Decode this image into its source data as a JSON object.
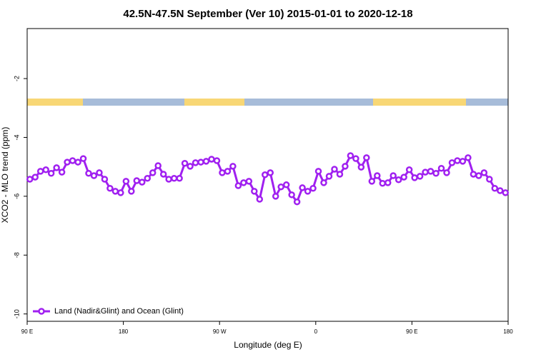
{
  "chart_data": {
    "type": "line",
    "title": "42.5N-47.5N September (Ver 10)   2015-01-01 to 2020-12-18",
    "x_label": "Longitude (deg E)",
    "y_label": "XCO2 - MLO trend (ppm)",
    "xlim": [
      90,
      540
    ],
    "ylim": [
      -10.25,
      -0.3
    ],
    "xticks": [
      {
        "value": 90,
        "label": "90 E"
      },
      180,
      {
        "value": 270,
        "label": "90 W"
      },
      {
        "value": 360,
        "label": "0"
      },
      {
        "value": 450,
        "label": "90 E"
      },
      {
        "value": 540,
        "label": "180"
      }
    ],
    "yticks": [
      -2,
      -4,
      -6,
      -8,
      -10
    ],
    "legend": "bottom-left",
    "x": [
      92.5,
      97.5,
      102.5,
      107.5,
      112.5,
      117.5,
      122.5,
      127.5,
      132.5,
      137.5,
      142.5,
      147.5,
      152.5,
      157.5,
      162.5,
      167.5,
      172.5,
      177.5,
      182.5,
      187.5,
      192.5,
      197.5,
      202.5,
      207.5,
      212.5,
      217.5,
      222.5,
      227.5,
      232.5,
      237.5,
      242.5,
      247.5,
      252.5,
      257.5,
      262.5,
      267.5,
      272.5,
      277.5,
      282.5,
      287.5,
      292.5,
      297.5,
      302.5,
      307.5,
      312.5,
      317.5,
      322.5,
      327.5,
      332.5,
      337.5,
      342.5,
      347.5,
      352.5,
      357.5,
      362.5,
      367.5,
      372.5,
      377.5,
      382.5,
      387.5,
      392.5,
      397.5,
      402.5,
      407.5,
      412.5,
      417.5,
      422.5,
      427.5,
      432.5,
      437.5,
      442.5,
      447.5,
      452.5,
      457.5,
      462.5,
      467.5,
      472.5,
      477.5,
      482.5,
      487.5,
      492.5,
      497.5,
      502.5,
      507.5,
      512.5,
      517.5,
      522.5,
      527.5,
      532.5,
      537.5
    ],
    "series": [
      {
        "name": "Land (Nadir&Glint) and Ocean (Glint)",
        "color": "#a020f0",
        "values": [
          -5.42,
          -5.35,
          -5.15,
          -5.1,
          -5.22,
          -5.03,
          -5.18,
          -4.84,
          -4.79,
          -4.84,
          -4.72,
          -5.22,
          -5.3,
          -5.2,
          -5.42,
          -5.73,
          -5.83,
          -5.88,
          -5.49,
          -5.83,
          -5.47,
          -5.52,
          -5.39,
          -5.2,
          -4.96,
          -5.25,
          -5.42,
          -5.39,
          -5.39,
          -4.88,
          -4.98,
          -4.86,
          -4.84,
          -4.81,
          -4.74,
          -4.79,
          -5.2,
          -5.15,
          -4.98,
          -5.64,
          -5.54,
          -5.49,
          -5.83,
          -6.1,
          -5.27,
          -5.2,
          -6.0,
          -5.68,
          -5.61,
          -5.95,
          -6.19,
          -5.71,
          -5.83,
          -5.73,
          -5.15,
          -5.54,
          -5.32,
          -5.08,
          -5.25,
          -4.98,
          -4.62,
          -4.72,
          -5.01,
          -4.69,
          -5.49,
          -5.3,
          -5.56,
          -5.54,
          -5.3,
          -5.44,
          -5.35,
          -5.1,
          -5.37,
          -5.32,
          -5.18,
          -5.15,
          -5.22,
          -5.05,
          -5.2,
          -4.86,
          -4.79,
          -4.81,
          -4.69,
          -5.25,
          -5.3,
          -5.2,
          -5.42,
          -5.73,
          -5.81,
          -5.88
        ]
      }
    ]
  }
}
